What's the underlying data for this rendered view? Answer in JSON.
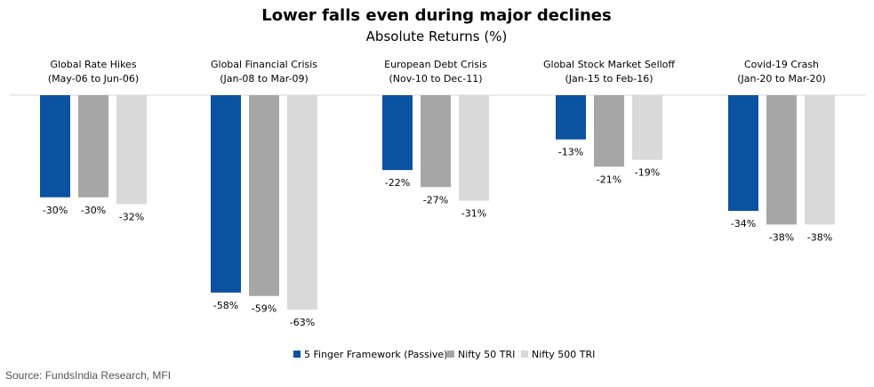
{
  "colors": {
    "series": [
      "#0B53A0",
      "#A6A6A6",
      "#D9D9D9"
    ],
    "baseline": "#D9D9D9",
    "text": "#000000"
  },
  "source": "Source: FundsIndia Research, MFI",
  "chart_data": {
    "type": "bar",
    "title": "Lower falls even during major declines",
    "subtitle": "Absolute Returns (%)",
    "categories": [
      {
        "name": "Global Rate Hikes",
        "period": "(May-06 to Jun-06)"
      },
      {
        "name": "Global Financial Crisis",
        "period": "(Jan-08 to Mar-09)"
      },
      {
        "name": "European Debt Crisis",
        "period": "(Nov-10 to Dec-11)"
      },
      {
        "name": "Global Stock Market Selloff",
        "period": "(Jan-15 to Feb-16)"
      },
      {
        "name": "Covid-19 Crash",
        "period": "(Jan-20 to Mar-20)"
      }
    ],
    "series": [
      {
        "name": "5 Finger Framework (Passive)",
        "values": [
          -30,
          -58,
          -22,
          -13,
          -34
        ],
        "labels": [
          "-30%",
          "-58%",
          "-22%",
          "-13%",
          "-34%"
        ]
      },
      {
        "name": "Nifty 50 TRI",
        "values": [
          -30,
          -59,
          -27,
          -21,
          -38
        ],
        "labels": [
          "-30%",
          "-59%",
          "-27%",
          "-21%",
          "-38%"
        ]
      },
      {
        "name": "Nifty 500 TRI",
        "values": [
          -32,
          -63,
          -31,
          -19,
          -38
        ],
        "labels": [
          "-32%",
          "-63%",
          "-31%",
          "-19%",
          "-38%"
        ]
      }
    ],
    "ylim": [
      -63,
      0
    ],
    "grid": false,
    "legend": "bottom-center"
  }
}
